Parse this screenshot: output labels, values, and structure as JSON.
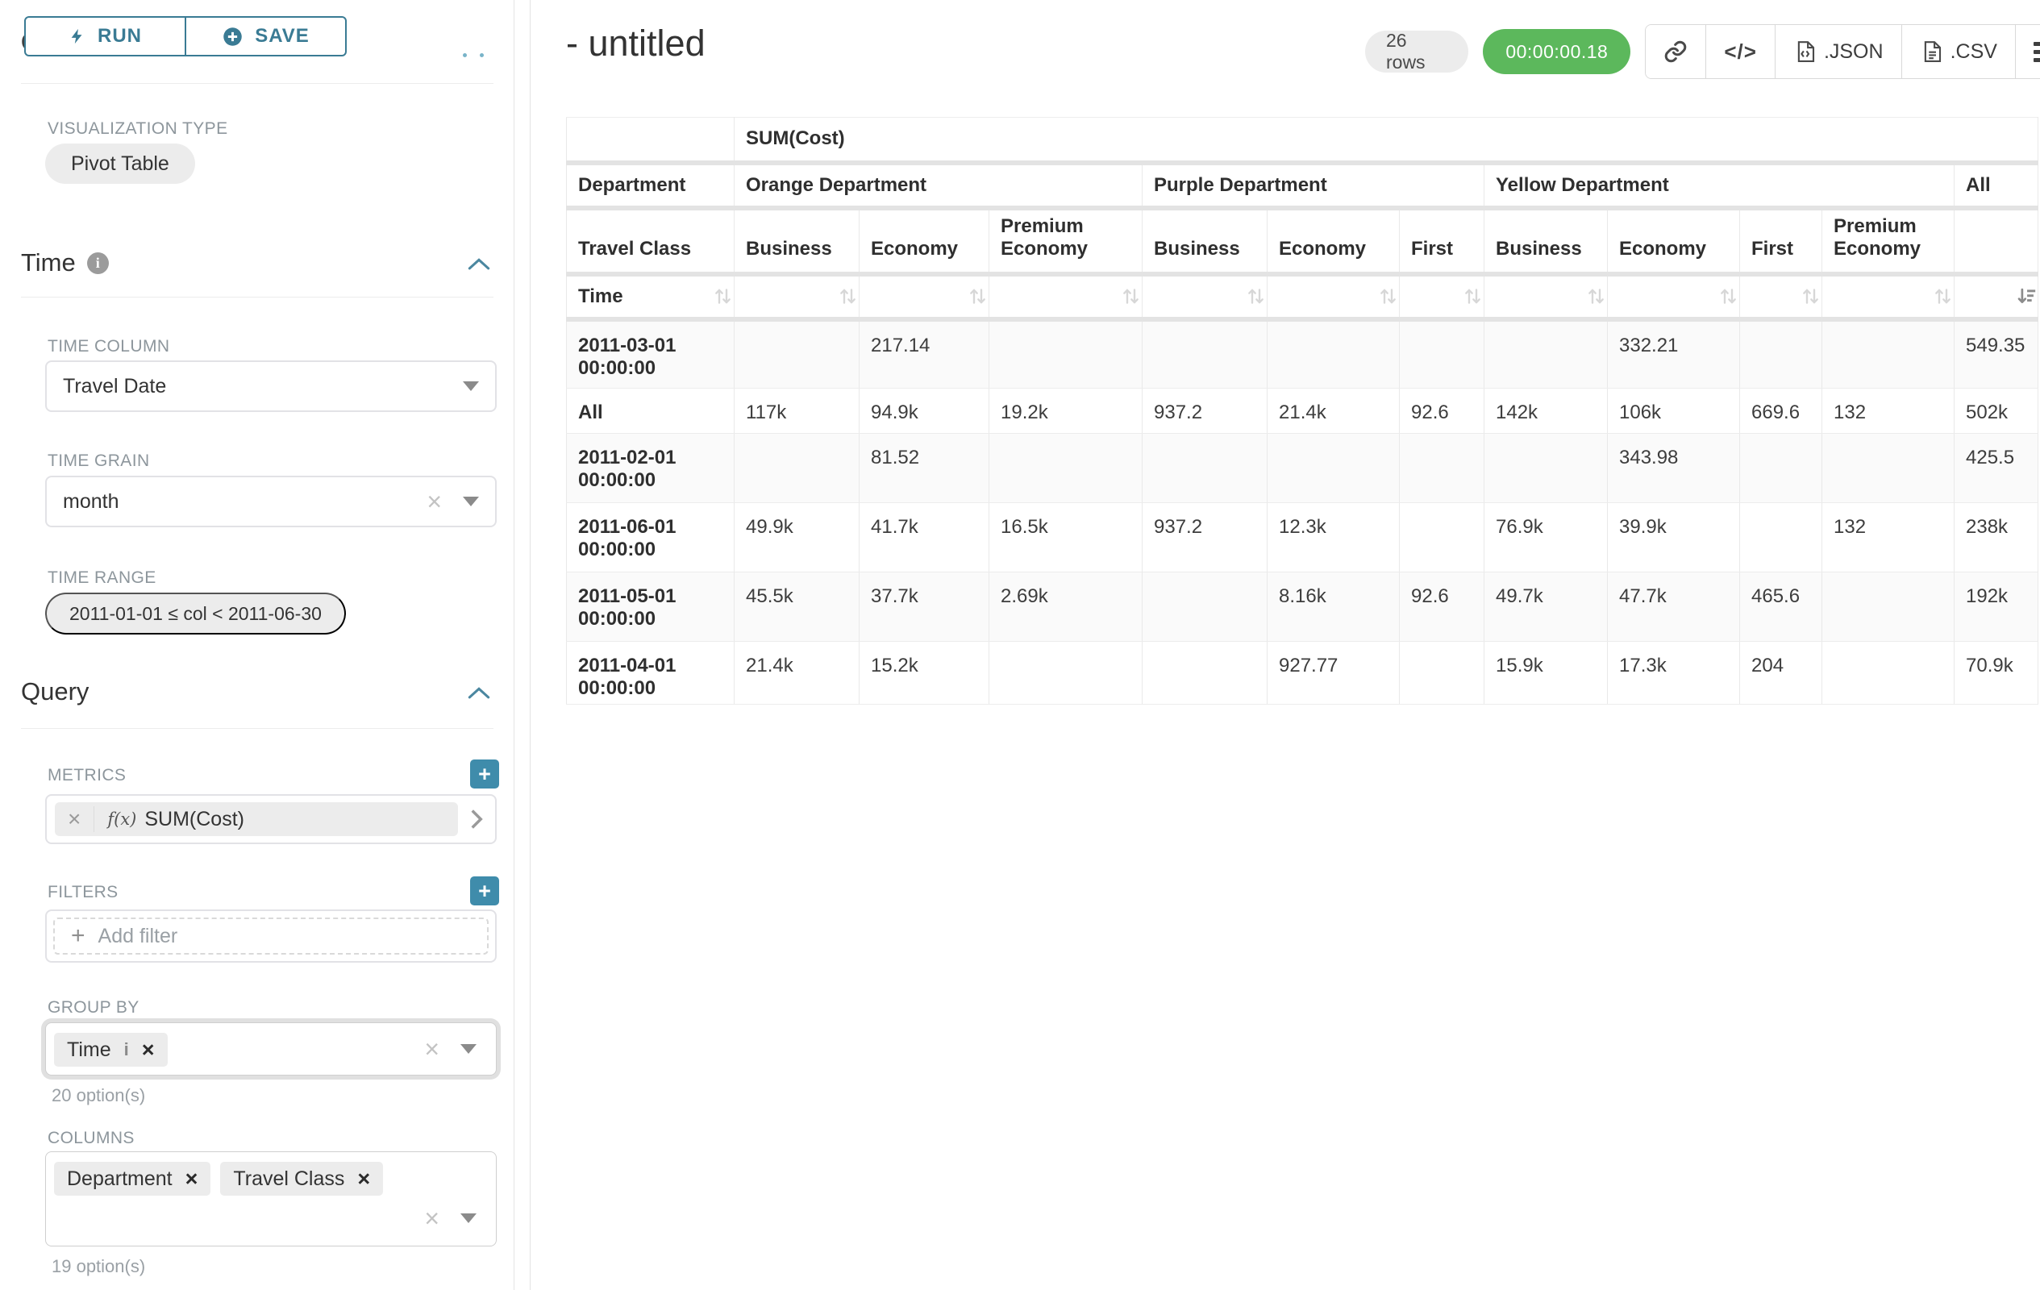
{
  "colors": {
    "accent": "#3a7b94",
    "timer_success": "#5cb85c",
    "tag_bg": "#ececec"
  },
  "toolbar": {
    "run_label": "RUN",
    "save_label": "SAVE"
  },
  "panel": {
    "chart_type_heading": "Chart Type",
    "visualization_type": {
      "label": "VISUALIZATION TYPE",
      "value": "Pivot Table"
    },
    "time": {
      "heading": "Time",
      "time_column": {
        "label": "TIME COLUMN",
        "value": "Travel Date"
      },
      "time_grain": {
        "label": "TIME GRAIN",
        "value": "month"
      },
      "time_range": {
        "label": "TIME RANGE",
        "value": "2011-01-01 ≤ col < 2011-06-30"
      }
    },
    "query": {
      "heading": "Query",
      "metrics": {
        "label": "METRICS",
        "fx": "f(x)",
        "value": "SUM(Cost)"
      },
      "filters": {
        "label": "FILTERS",
        "placeholder": "Add filter"
      },
      "group_by": {
        "label": "GROUP BY",
        "values": [
          "Time"
        ],
        "hint": "20 option(s)"
      },
      "columns": {
        "label": "COLUMNS",
        "values": [
          "Department",
          "Travel Class"
        ],
        "hint": "19 option(s)"
      }
    }
  },
  "header": {
    "title": "- untitled",
    "rowcount": "26 rows",
    "timer": "00:00:00.18",
    "export_json": ".JSON",
    "export_csv": ".CSV"
  },
  "pivot": {
    "metric_label": "SUM(Cost)",
    "column_dimension_label": "Department",
    "row_dimension_label": "Travel Class",
    "row_axis_label": "Time",
    "sorted_column": "All",
    "sort_direction": "desc",
    "column_groups": [
      {
        "label": "Orange Department",
        "children": [
          "Business",
          "Economy",
          "Premium Economy"
        ]
      },
      {
        "label": "Purple Department",
        "children": [
          "Business",
          "Economy",
          "First"
        ]
      },
      {
        "label": "Yellow Department",
        "children": [
          "Business",
          "Economy",
          "First",
          "Premium Economy"
        ]
      },
      {
        "label": "All",
        "children": [
          ""
        ]
      }
    ],
    "rows": [
      {
        "label": "2011-03-01 00:00:00",
        "values": [
          "",
          "217.14",
          "",
          "",
          "",
          "",
          "",
          "332.21",
          "",
          "",
          "549.35"
        ]
      },
      {
        "label": "All",
        "values": [
          "117k",
          "94.9k",
          "19.2k",
          "937.2",
          "21.4k",
          "92.6",
          "142k",
          "106k",
          "669.6",
          "132",
          "502k"
        ]
      },
      {
        "label": "2011-02-01 00:00:00",
        "values": [
          "",
          "81.52",
          "",
          "",
          "",
          "",
          "",
          "343.98",
          "",
          "",
          "425.5"
        ]
      },
      {
        "label": "2011-06-01 00:00:00",
        "values": [
          "49.9k",
          "41.7k",
          "16.5k",
          "937.2",
          "12.3k",
          "",
          "76.9k",
          "39.9k",
          "",
          "132",
          "238k"
        ]
      },
      {
        "label": "2011-05-01 00:00:00",
        "values": [
          "45.5k",
          "37.7k",
          "2.69k",
          "",
          "8.16k",
          "92.6",
          "49.7k",
          "47.7k",
          "465.6",
          "",
          "192k"
        ]
      },
      {
        "label": "2011-04-01 00:00:00",
        "values": [
          "21.4k",
          "15.2k",
          "",
          "",
          "927.77",
          "",
          "15.9k",
          "17.3k",
          "204",
          "",
          "70.9k"
        ]
      }
    ]
  }
}
